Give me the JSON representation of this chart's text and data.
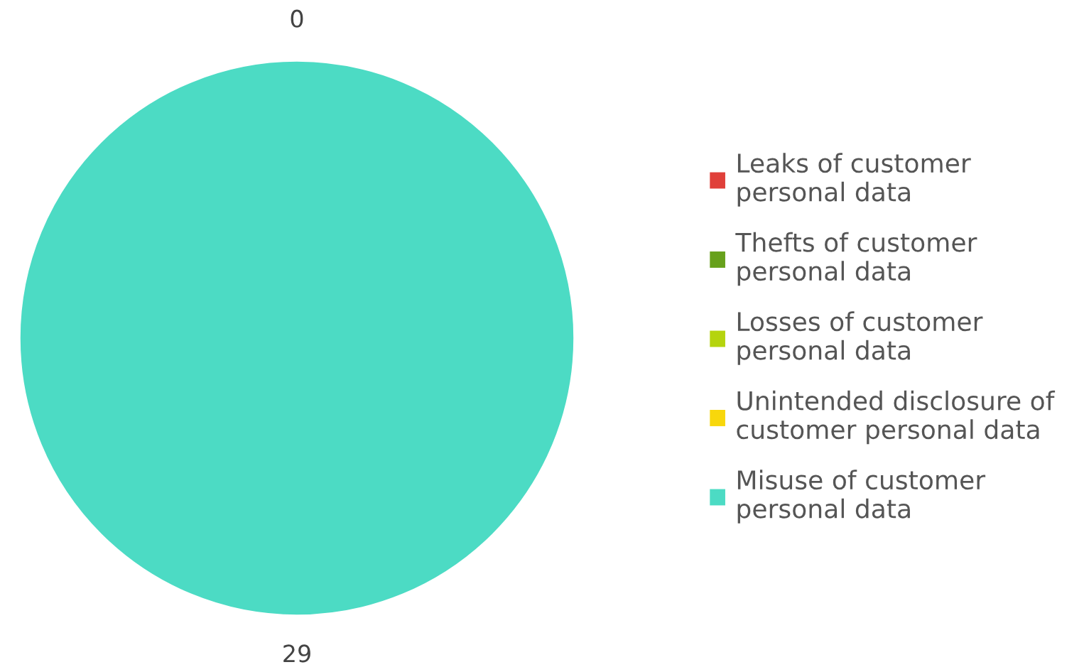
{
  "chart_data": {
    "type": "pie",
    "categories": [
      "Leaks of customer\npersonal data",
      "Thefts of customer\npersonal data",
      "Losses of customer\npersonal data",
      "Unintended disclosure of\ncustomer personal data",
      "Misuse of customer\npersonal data"
    ],
    "values": [
      0,
      0,
      0,
      0,
      29
    ],
    "colors": [
      "#e0403a",
      "#67a11c",
      "#b5d40e",
      "#f8d70c",
      "#4cdbc4"
    ],
    "value_labels": [
      "0",
      null,
      null,
      null,
      "29"
    ],
    "legend": "right"
  }
}
